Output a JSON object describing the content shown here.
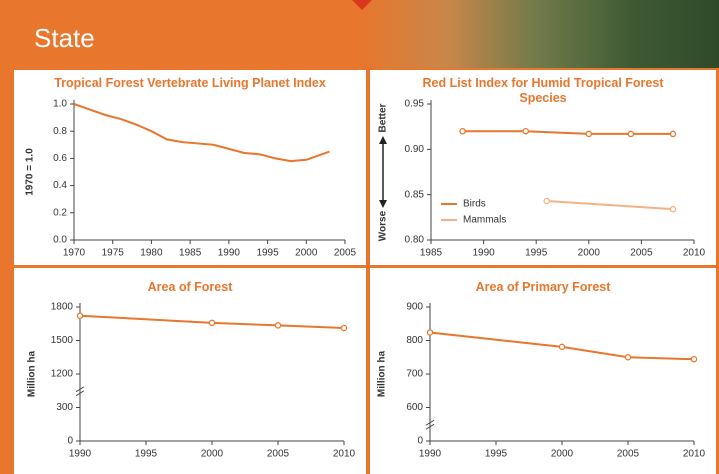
{
  "header": {
    "title": "State"
  },
  "chart_data": [
    {
      "type": "line",
      "title": "Tropical Forest Vertebrate Living Planet Index",
      "ylabel": "1970 = 1.0",
      "x": [
        1970,
        1972,
        1974,
        1976,
        1978,
        1980,
        1982,
        1984,
        1986,
        1988,
        1990,
        1992,
        1994,
        1996,
        1998,
        2000,
        2002,
        2003
      ],
      "values": [
        1.0,
        0.96,
        0.92,
        0.89,
        0.85,
        0.8,
        0.74,
        0.72,
        0.71,
        0.7,
        0.67,
        0.64,
        0.63,
        0.6,
        0.58,
        0.59,
        0.63,
        0.65
      ],
      "color": "#e8762d",
      "markers": false,
      "xlim": [
        1970,
        2005
      ],
      "xticks": [
        1970,
        1975,
        1980,
        1985,
        1990,
        1995,
        2000,
        2005
      ],
      "ylim": [
        0,
        1.0
      ],
      "yticks": [
        {
          "value": 0,
          "label": "0.0"
        },
        0.2,
        0.4,
        0.6,
        0.8,
        {
          "value": 1.0,
          "label": "1.0"
        }
      ]
    },
    {
      "type": "line",
      "title": "Red List Index for Humid Tropical Forest Species",
      "annotations": {
        "top": "Better",
        "bottom": "Worse"
      },
      "series": [
        {
          "name": "Birds",
          "color": "#e8762d",
          "x": [
            1988,
            1994,
            2000,
            2004,
            2008
          ],
          "values": [
            0.92,
            0.92,
            0.917,
            0.917,
            0.917
          ]
        },
        {
          "name": "Mammals",
          "color": "#f4b183",
          "x": [
            1996,
            2008
          ],
          "values": [
            0.843,
            0.834
          ]
        }
      ],
      "markers": true,
      "legend": "lower left",
      "xlim": [
        1985,
        2010
      ],
      "xticks": [
        1985,
        1990,
        1995,
        2000,
        2005,
        2010
      ],
      "ylim": [
        0.8,
        0.95
      ],
      "yticks": [
        {
          "value": 0.8,
          "label": "0.80"
        },
        0.85,
        {
          "value": 0.9,
          "label": "0.90"
        },
        0.95
      ]
    },
    {
      "type": "line",
      "title": "Area of Forest",
      "ylabel": "Million ha",
      "x": [
        1990,
        2000,
        2005,
        2010
      ],
      "values": [
        1722,
        1658,
        1635,
        1612
      ],
      "color": "#e8762d",
      "markers": true,
      "y_axis_break": true,
      "xlim": [
        1990,
        2010
      ],
      "xticks": [
        1990,
        1995,
        2000,
        2005,
        2010
      ],
      "ylim": [
        0,
        1800
      ],
      "yticks": [
        0,
        300,
        1200,
        1500,
        1800
      ]
    },
    {
      "type": "line",
      "title": "Area of Primary Forest",
      "ylabel": "Million ha",
      "x": [
        1990,
        2000,
        2005,
        2010
      ],
      "values": [
        824,
        781,
        750,
        744
      ],
      "color": "#e8762d",
      "markers": true,
      "y_axis_break": true,
      "xlim": [
        1990,
        2010
      ],
      "xticks": [
        1990,
        1995,
        2000,
        2005,
        2010
      ],
      "ylim": [
        0,
        900
      ],
      "yticks": [
        0,
        600,
        700,
        800,
        900
      ]
    }
  ]
}
